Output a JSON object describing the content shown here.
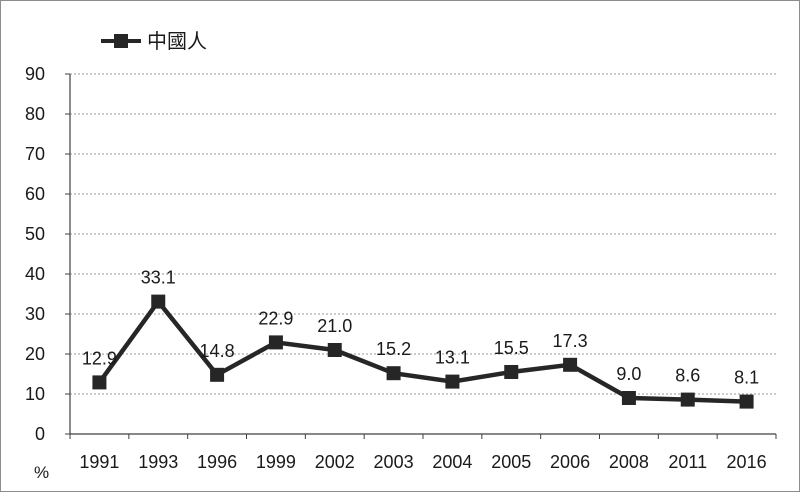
{
  "chart_data": {
    "type": "line",
    "title": "",
    "xlabel": "",
    "ylabel": "%",
    "categories": [
      "1991",
      "1993",
      "1996",
      "1999",
      "2002",
      "2003",
      "2004",
      "2005",
      "2006",
      "2008",
      "2011",
      "2016"
    ],
    "series": [
      {
        "name": "中國人",
        "values": [
          12.9,
          33.1,
          14.8,
          22.9,
          21.0,
          15.2,
          13.1,
          15.5,
          17.3,
          9.0,
          8.6,
          8.1
        ],
        "labels": [
          "12.9",
          "33.1",
          "14.8",
          "22.9",
          "21.0",
          "15.2",
          "13.1",
          "15.5",
          "17.3",
          "9.0",
          "8.6",
          "8.1"
        ],
        "color": "#262626",
        "marker": "square"
      }
    ],
    "ylim": [
      0,
      90
    ],
    "yticks": [
      "0",
      "10",
      "20",
      "30",
      "40",
      "50",
      "60",
      "70",
      "80",
      "90"
    ],
    "grid": true,
    "legend": "top-left"
  }
}
